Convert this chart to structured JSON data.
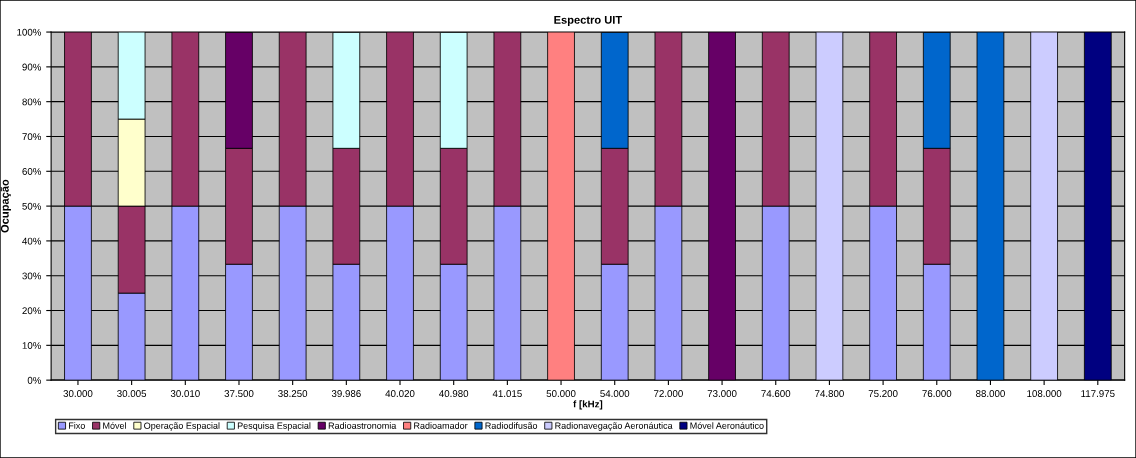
{
  "chart_data": {
    "type": "bar",
    "title": "Espectro UIT",
    "xlabel": "f [kHz]",
    "ylabel": "Ocupação",
    "stacked": true,
    "grid": "y",
    "legend": "bottom",
    "categories": [
      "30.000",
      "30.005",
      "30.010",
      "37.500",
      "38.250",
      "39.986",
      "40.020",
      "40.980",
      "41.015",
      "50.000",
      "54.000",
      "72.000",
      "73.000",
      "74.600",
      "74.800",
      "75.200",
      "76.000",
      "88.000",
      "108.000",
      "117.975"
    ],
    "ylim": [
      0,
      100
    ],
    "yticks": [
      {
        "value": 0,
        "label": "0%"
      },
      {
        "value": 10,
        "label": "10%"
      },
      {
        "value": 20,
        "label": "20%"
      },
      {
        "value": 30,
        "label": "30%"
      },
      {
        "value": 40,
        "label": "40%"
      },
      {
        "value": 50,
        "label": "50%"
      },
      {
        "value": 60,
        "label": "60%"
      },
      {
        "value": 70,
        "label": "70%"
      },
      {
        "value": 80,
        "label": "80%"
      },
      {
        "value": 90,
        "label": "90%"
      },
      {
        "value": 100,
        "label": "100%"
      }
    ],
    "series": [
      {
        "name": "Fixo",
        "color": "#9999ff",
        "values": [
          50,
          25,
          50,
          33.3,
          50,
          33.3,
          50,
          33.3,
          50,
          null,
          33.3,
          50,
          null,
          50,
          null,
          50,
          33.3,
          null,
          null,
          null
        ]
      },
      {
        "name": "Móvel",
        "color": "#993366",
        "values": [
          50,
          25,
          50,
          33.3,
          50,
          33.3,
          50,
          33.3,
          50,
          null,
          33.3,
          50,
          null,
          50,
          null,
          50,
          33.3,
          null,
          null,
          null
        ]
      },
      {
        "name": "Operação Espacial",
        "color": "#ffffcc",
        "values": [
          null,
          25,
          null,
          null,
          null,
          null,
          null,
          null,
          null,
          null,
          null,
          null,
          null,
          null,
          null,
          null,
          null,
          null,
          null,
          null
        ]
      },
      {
        "name": "Pesquisa Espacial",
        "color": "#ccffff",
        "values": [
          null,
          25,
          null,
          null,
          null,
          33.3,
          null,
          33.3,
          null,
          null,
          null,
          null,
          null,
          null,
          null,
          null,
          null,
          null,
          null,
          null
        ]
      },
      {
        "name": "Radioastronomia",
        "color": "#660066",
        "values": [
          null,
          null,
          null,
          33.3,
          null,
          null,
          null,
          null,
          null,
          null,
          null,
          null,
          100,
          null,
          null,
          null,
          null,
          null,
          null,
          null
        ]
      },
      {
        "name": "Radioamador",
        "color": "#ff8080",
        "values": [
          null,
          null,
          null,
          null,
          null,
          null,
          null,
          null,
          null,
          100,
          null,
          null,
          null,
          null,
          null,
          null,
          null,
          null,
          null,
          null
        ]
      },
      {
        "name": "Radiodifusão",
        "color": "#0066cc",
        "values": [
          null,
          null,
          null,
          null,
          null,
          null,
          null,
          null,
          null,
          null,
          33.3,
          null,
          null,
          null,
          null,
          null,
          33.3,
          100,
          null,
          null
        ]
      },
      {
        "name": "Radionavegação Aeronáutica",
        "color": "#ccccff",
        "values": [
          null,
          null,
          null,
          null,
          null,
          null,
          null,
          null,
          null,
          null,
          null,
          null,
          null,
          null,
          100,
          null,
          null,
          null,
          100,
          null
        ]
      },
      {
        "name": "Móvel Aeronáutico",
        "color": "#000080",
        "values": [
          null,
          null,
          null,
          null,
          null,
          null,
          null,
          null,
          null,
          null,
          null,
          null,
          null,
          null,
          null,
          null,
          null,
          null,
          null,
          100
        ]
      }
    ]
  }
}
